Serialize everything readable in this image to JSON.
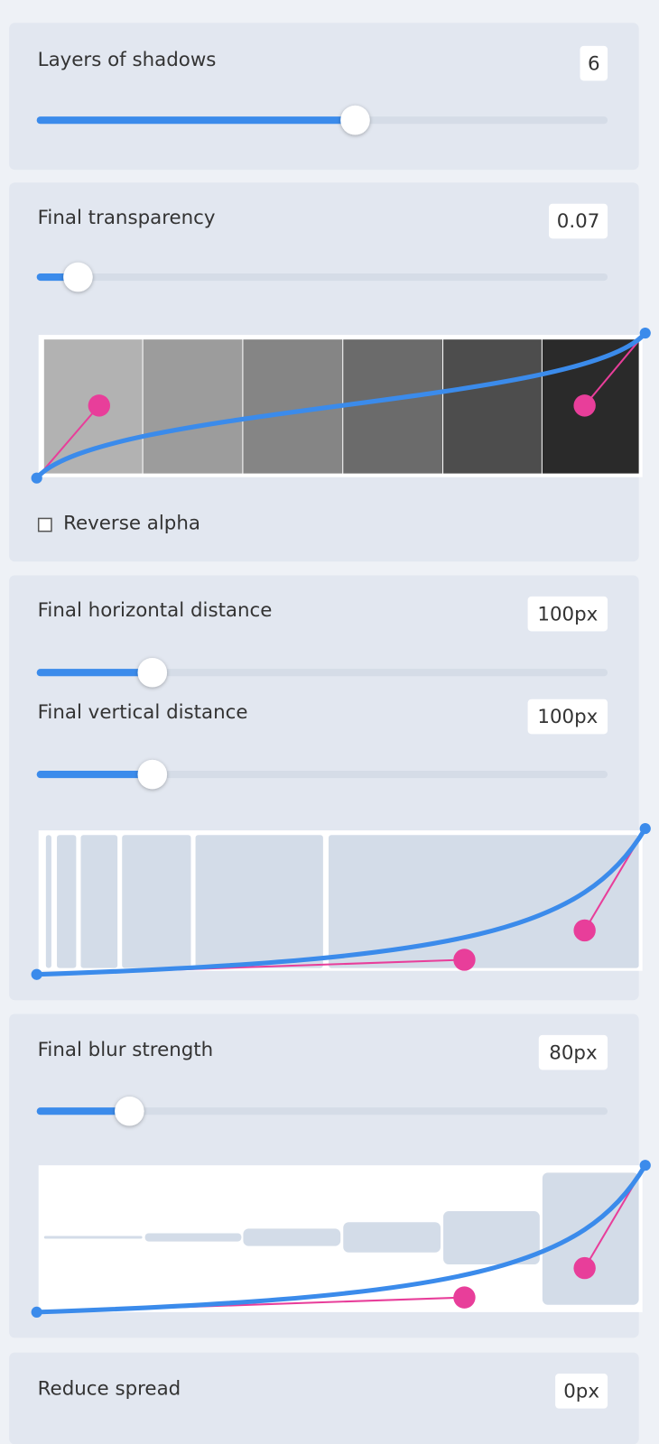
{
  "panels": [
    {
      "label": "Layers of shadows",
      "value": "6"
    },
    {
      "label": "Final transparency",
      "value": "0.07",
      "checkbox": "Reverse alpha"
    },
    {
      "label": "Final horizontal distance",
      "value": "100px"
    },
    {
      "label": "Final vertical distance",
      "value": "100px"
    },
    {
      "label": "Final blur strength",
      "value": "80px"
    },
    {
      "label": "Reduce spread",
      "value": "0px"
    }
  ]
}
